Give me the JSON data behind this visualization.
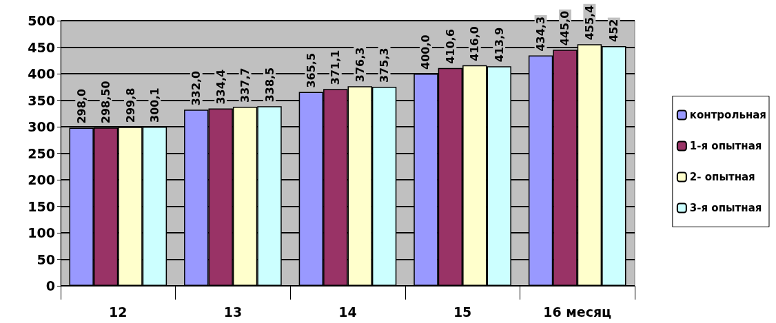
{
  "chart_data": {
    "type": "bar",
    "categories": [
      "12",
      "13",
      "14",
      "15",
      "16 месяц"
    ],
    "series": [
      {
        "name": "контрольная",
        "color": "#9999ff",
        "values": [
          298.0,
          332.0,
          365.5,
          400.0,
          434.3
        ],
        "value_labels": [
          "298,0",
          "332,0",
          "365,5",
          "400,0",
          "434,3"
        ]
      },
      {
        "name": "1-я опытная",
        "color": "#993366",
        "values": [
          298.5,
          334.4,
          371.1,
          410.6,
          445.0
        ],
        "value_labels": [
          "298,50",
          "334,4",
          "371,1",
          "410,6",
          "445,0"
        ]
      },
      {
        "name": "2- опытная",
        "color": "#ffffcc",
        "values": [
          299.8,
          337.7,
          376.3,
          416.0,
          455.4
        ],
        "value_labels": [
          "299,8",
          "337,7",
          "376,3",
          "416,0",
          "455,4"
        ]
      },
      {
        "name": "3-я опытная",
        "color": "#ccffff",
        "values": [
          300.1,
          338.5,
          375.3,
          413.9,
          452
        ],
        "value_labels": [
          "300,1",
          "338,5",
          "375,3",
          "413,9",
          "452"
        ]
      }
    ],
    "ylim": [
      0,
      500
    ],
    "yticks": [
      0,
      50,
      100,
      150,
      200,
      250,
      300,
      350,
      400,
      450,
      500
    ],
    "grid": "y",
    "legend": "right"
  }
}
